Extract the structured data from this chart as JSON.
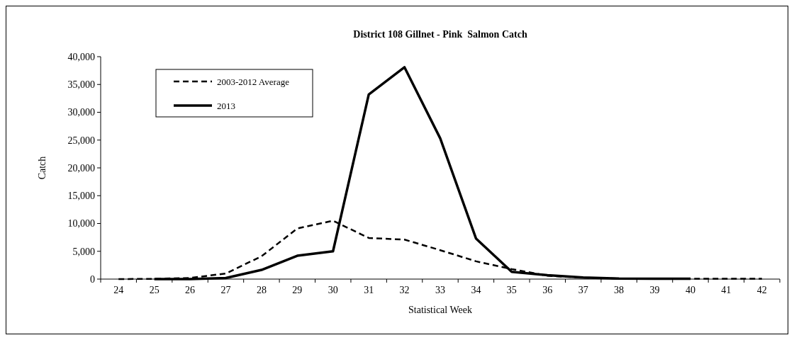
{
  "chart_data": {
    "type": "line",
    "title": "District 108 Gillnet - Pink  Salmon Catch",
    "xlabel": "Statistical Week",
    "ylabel": "Catch",
    "categories": [
      "24",
      "25",
      "26",
      "27",
      "28",
      "29",
      "30",
      "31",
      "32",
      "33",
      "34",
      "35",
      "36",
      "37",
      "38",
      "39",
      "40",
      "41",
      "42"
    ],
    "series": [
      {
        "name": "2003-2012 Average",
        "color": "#000000",
        "line_style": "dashed",
        "values": [
          0,
          50,
          200,
          1000,
          4100,
          9100,
          10500,
          7400,
          7100,
          5200,
          3200,
          1800,
          600,
          250,
          100,
          50,
          50,
          50,
          50
        ]
      },
      {
        "name": "2013",
        "color": "#000000",
        "line_style": "solid",
        "values": [
          null,
          0,
          0,
          200,
          1650,
          4200,
          5000,
          33200,
          38100,
          25300,
          7300,
          1300,
          700,
          300,
          100,
          50,
          50,
          null,
          null
        ]
      }
    ],
    "ylim": [
      0,
      40000
    ],
    "yticks": [
      {
        "value": 0,
        "label": "0"
      },
      {
        "value": 5000,
        "label": "5,000"
      },
      {
        "value": 10000,
        "label": "10,000"
      },
      {
        "value": 15000,
        "label": "15,000"
      },
      {
        "value": 20000,
        "label": "20,000"
      },
      {
        "value": 25000,
        "label": "25,000"
      },
      {
        "value": 30000,
        "label": "30,000"
      },
      {
        "value": 35000,
        "label": "35,000"
      },
      {
        "value": 40000,
        "label": "40,000"
      }
    ],
    "grid": false,
    "legend": "top left",
    "marker": "none"
  }
}
